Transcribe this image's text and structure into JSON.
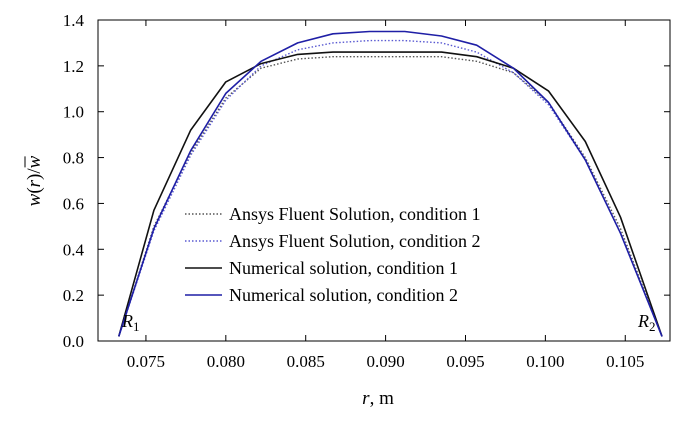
{
  "chart_data": {
    "type": "line",
    "xlabel_var": "r",
    "xlabel_unit": ", m",
    "ylabel_parts": [
      "w",
      "(",
      "r",
      ")/",
      "w"
    ],
    "xlim": [
      0.072,
      0.1078
    ],
    "ylim": [
      0.0,
      1.4
    ],
    "x_ticks": [
      0.075,
      0.08,
      0.085,
      0.09,
      0.095,
      0.1,
      0.105
    ],
    "x_tick_labels": [
      "0.075",
      "0.080",
      "0.085",
      "0.090",
      "0.095",
      "0.100",
      "0.105"
    ],
    "y_ticks": [
      0.0,
      0.2,
      0.4,
      0.6,
      0.8,
      1.0,
      1.2,
      1.4
    ],
    "y_tick_labels": [
      "0.0",
      "0.2",
      "0.4",
      "0.6",
      "0.8",
      "1.0",
      "1.2",
      "1.4"
    ],
    "grid": false,
    "legend_position": "lower-center",
    "annotations": [
      {
        "id": "r1",
        "base": "R",
        "sub": "1",
        "x": 0.0735,
        "y": 0.06
      },
      {
        "id": "r2",
        "base": "R",
        "sub": "2",
        "x": 0.1058,
        "y": 0.06
      }
    ],
    "series": [
      {
        "name": "Ansys Fluent Solution, condition 1",
        "color": "#555555",
        "style": "dotted",
        "x": [
          0.0733,
          0.0755,
          0.0778,
          0.08,
          0.0822,
          0.0845,
          0.0867,
          0.089,
          0.0912,
          0.0935,
          0.0957,
          0.098,
          0.1002,
          0.1025,
          0.1047,
          0.1073
        ],
        "y": [
          0.02,
          0.5,
          0.82,
          1.06,
          1.19,
          1.23,
          1.24,
          1.24,
          1.24,
          1.24,
          1.22,
          1.17,
          1.04,
          0.8,
          0.49,
          0.02
        ]
      },
      {
        "name": "Ansys Fluent Solution, condition 2",
        "color": "#5a5ad2",
        "style": "dotted",
        "x": [
          0.0733,
          0.0755,
          0.0778,
          0.08,
          0.0822,
          0.0845,
          0.0867,
          0.089,
          0.0912,
          0.0935,
          0.0957,
          0.098,
          0.1002,
          0.1025,
          0.1047,
          0.1073
        ],
        "y": [
          0.02,
          0.48,
          0.81,
          1.05,
          1.2,
          1.27,
          1.3,
          1.31,
          1.31,
          1.3,
          1.26,
          1.17,
          1.03,
          0.79,
          0.47,
          0.02
        ]
      },
      {
        "name": "Numerical solution, condition 1",
        "color": "#111111",
        "style": "solid",
        "x": [
          0.0733,
          0.0755,
          0.0778,
          0.08,
          0.0822,
          0.0845,
          0.0867,
          0.089,
          0.0912,
          0.0935,
          0.0957,
          0.098,
          0.1002,
          0.1025,
          0.1047,
          0.1073
        ],
        "y": [
          0.02,
          0.57,
          0.92,
          1.13,
          1.21,
          1.25,
          1.26,
          1.26,
          1.26,
          1.26,
          1.24,
          1.19,
          1.09,
          0.87,
          0.54,
          0.02
        ]
      },
      {
        "name": "Numerical solution, condition 2",
        "color": "#1f1fa6",
        "style": "solid",
        "x": [
          0.0733,
          0.0755,
          0.0778,
          0.08,
          0.0822,
          0.0845,
          0.0867,
          0.089,
          0.0912,
          0.0935,
          0.0957,
          0.098,
          0.1002,
          0.1025,
          0.1047,
          0.1073
        ],
        "y": [
          0.02,
          0.49,
          0.83,
          1.08,
          1.22,
          1.3,
          1.34,
          1.35,
          1.35,
          1.33,
          1.29,
          1.19,
          1.04,
          0.79,
          0.47,
          0.02
        ]
      }
    ]
  }
}
